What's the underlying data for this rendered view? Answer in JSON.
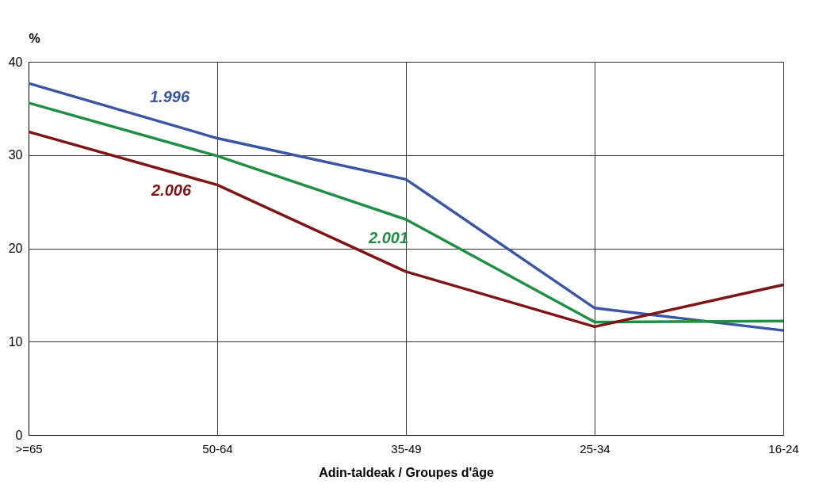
{
  "chart_data": {
    "type": "line",
    "ylabel": "%",
    "xlabel": "Adin-taldeak / Groupes d'âge",
    "categories": [
      ">=65",
      "50-64",
      "35-49",
      "25-34",
      "16-24"
    ],
    "series": [
      {
        "name": "1.996",
        "color": "#3a55a4",
        "values": [
          37.7,
          31.8,
          27.4,
          13.6,
          11.2
        ]
      },
      {
        "name": "2.001",
        "color": "#1f8f45",
        "values": [
          35.6,
          29.9,
          23.1,
          12.1,
          12.2
        ]
      },
      {
        "name": "2.006",
        "color": "#7f1416",
        "values": [
          32.5,
          26.8,
          17.5,
          11.6,
          16.1
        ]
      }
    ],
    "ylim": [
      0,
      40
    ],
    "yticks": [
      0,
      10,
      20,
      30,
      40
    ],
    "grid": true,
    "legend": false,
    "marker": "none",
    "line_style": "solid"
  }
}
